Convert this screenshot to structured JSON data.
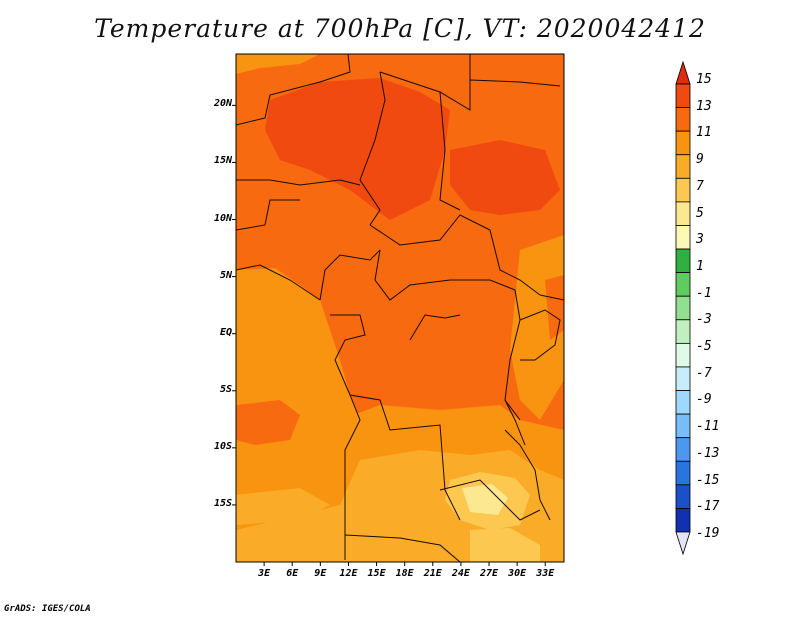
{
  "title": "Temperature at 700hPa [C], VT: 2020042412",
  "credit": "GrADS: IGES/COLA",
  "map": {
    "lat_labels": [
      "20N",
      "15N",
      "10N",
      "5N",
      "EQ",
      "5S",
      "10S",
      "15S"
    ],
    "lon_labels": [
      "3E",
      "6E",
      "9E",
      "12E",
      "15E",
      "18E",
      "21E",
      "24E",
      "27E",
      "30E",
      "33E"
    ],
    "lon_range": [
      0,
      35
    ],
    "lat_range": [
      -20,
      24.5
    ]
  },
  "colorbar": {
    "levels": [
      "15",
      "13",
      "11",
      "9",
      "7",
      "5",
      "3",
      "1",
      "-1",
      "-3",
      "-5",
      "-7",
      "-9",
      "-11",
      "-13",
      "-15",
      "-17",
      "-19"
    ],
    "colors": [
      "#e02c10",
      "#f04a10",
      "#f86a10",
      "#f89410",
      "#faac28",
      "#fcc850",
      "#fce890",
      "#fcf8b8",
      "#30b040",
      "#60cc60",
      "#90e090",
      "#c0f0c0",
      "#e0fae8",
      "#c8ecfc",
      "#a0d8fc",
      "#78bcf8",
      "#4c98f0",
      "#2a74e0",
      "#1c50c8",
      "#1230b0",
      "#08189a",
      "#000070",
      "#e4e4f8"
    ]
  }
}
